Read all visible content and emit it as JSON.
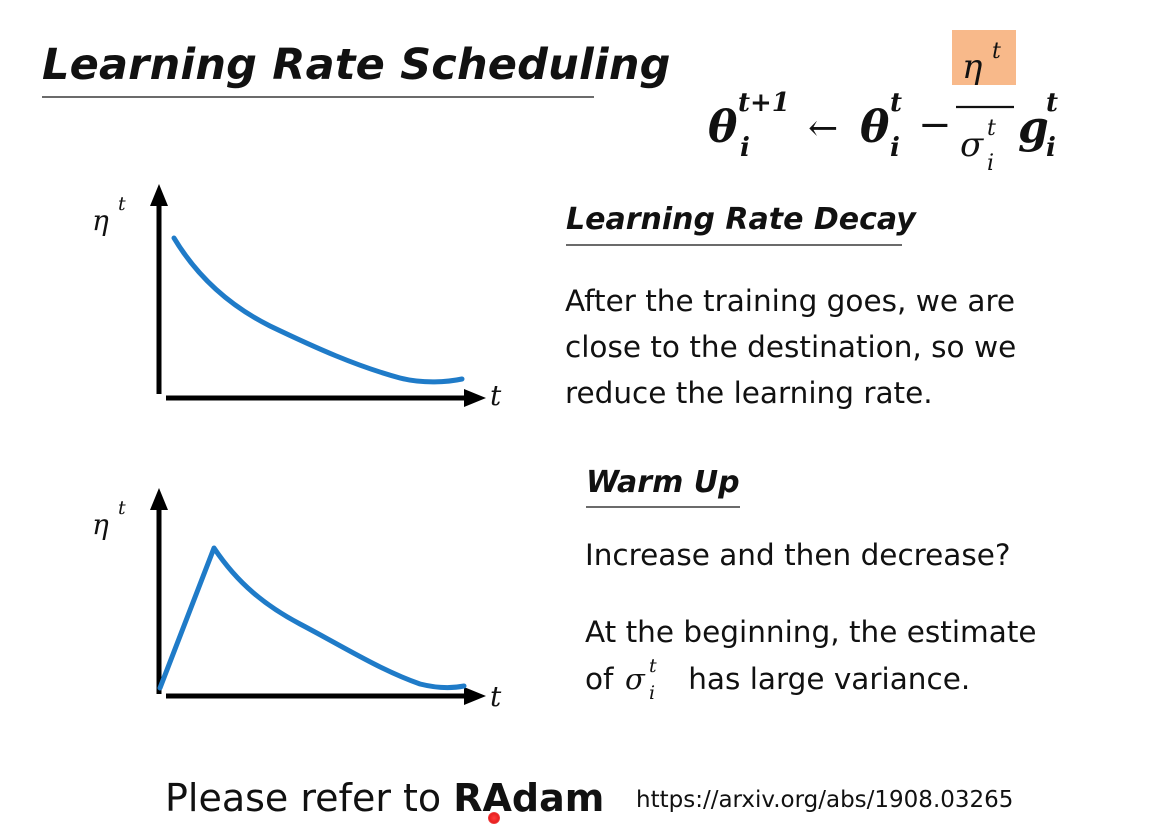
{
  "title": "Learning Rate Scheduling",
  "formula": {
    "lhs": "θ",
    "lhs_sup": "t+1",
    "lhs_sub": "i",
    "arrow": "←",
    "theta": "θ",
    "theta_sup": "t",
    "theta_sub": "i",
    "minus": "−",
    "numerator": "η",
    "numerator_sup": "t",
    "denominator": "σ",
    "denominator_sup": "t",
    "denominator_sub": "i",
    "g": "g",
    "g_sup": "t",
    "g_sub": "i",
    "highlight_color": "#f8b98a"
  },
  "decay": {
    "title": "Learning Rate Decay",
    "lines": [
      "After the training goes, we are",
      "close to the destination, so we",
      "reduce the learning rate."
    ]
  },
  "warmup": {
    "title": "Warm Up",
    "question": "Increase and then decrease?",
    "variance_line1": "At the beginning, the estimate",
    "variance_prefix": "of ",
    "sigma": "σ",
    "sigma_sup": "t",
    "sigma_sub": "i",
    "variance_suffix": " has large variance."
  },
  "graph_labels": {
    "y": "η",
    "y_sup": "t",
    "x": "t"
  },
  "curve_color": "#1f7bc8",
  "footer": {
    "refer_prefix": "Please refer to ",
    "refer_strong": "RAdam",
    "url": "https://arxiv.org/abs/1908.03265"
  }
}
